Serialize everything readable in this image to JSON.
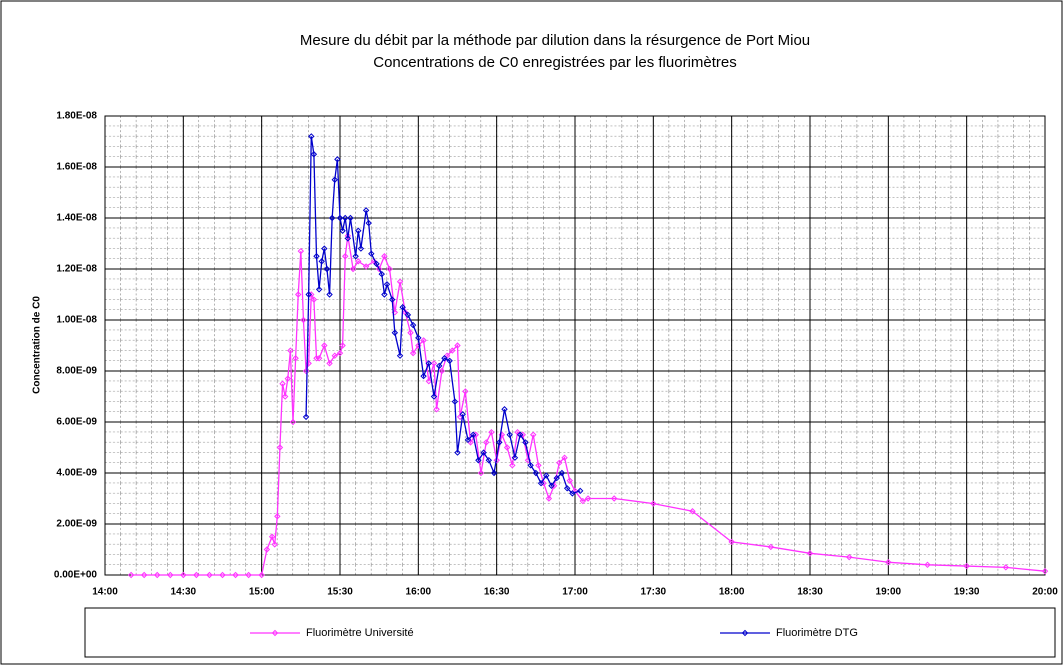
{
  "chart_data": {
    "type": "line",
    "title": "Mesure du débit par la méthode par dilution dans la résurgence de Port Miou",
    "subtitle": "Concentrations de C0 enregistrées par les fluorimètres",
    "y_label": "Concentration de C0",
    "xlim": [
      "14:00",
      "20:00"
    ],
    "xticks": [
      "14:00",
      "14:30",
      "15:00",
      "15:30",
      "16:00",
      "16:30",
      "17:00",
      "17:30",
      "18:00",
      "18:30",
      "19:00",
      "19:30",
      "20:00"
    ],
    "ylim": [
      0,
      1.8e-08
    ],
    "yticks": [
      {
        "value": 0,
        "label": "0.00E+00"
      },
      {
        "value": 2e-09,
        "label": "2.00E-09"
      },
      {
        "value": 4e-09,
        "label": "4.00E-09"
      },
      {
        "value": 6e-09,
        "label": "6.00E-09"
      },
      {
        "value": 8e-09,
        "label": "8.00E-09"
      },
      {
        "value": 1e-08,
        "label": "1.00E-08"
      },
      {
        "value": 1.2e-08,
        "label": "1.20E-08"
      },
      {
        "value": 1.4e-08,
        "label": "1.40E-08"
      },
      {
        "value": 1.6e-08,
        "label": "1.60E-08"
      },
      {
        "value": 1.8e-08,
        "label": "1.80E-08"
      }
    ],
    "grid": true,
    "legend": "bottom",
    "series": [
      {
        "name": "Fluorimètre Université",
        "color": "#ff33ff",
        "x": [
          "14:10",
          "14:15",
          "14:20",
          "14:25",
          "14:30",
          "14:35",
          "14:40",
          "14:45",
          "14:50",
          "14:55",
          "15:00",
          "15:02",
          "15:04",
          "15:05",
          "15:06",
          "15:07",
          "15:08",
          "15:09",
          "15:10",
          "15:11",
          "15:12",
          "15:13",
          "15:14",
          "15:15",
          "15:16",
          "15:17",
          "15:18",
          "15:19",
          "15:20",
          "15:21",
          "15:22",
          "15:24",
          "15:26",
          "15:28",
          "15:30",
          "15:31",
          "15:32",
          "15:33",
          "15:35",
          "15:37",
          "15:40",
          "15:43",
          "15:45",
          "15:47",
          "15:49",
          "15:51",
          "15:53",
          "15:55",
          "15:57",
          "15:58",
          "16:00",
          "16:02",
          "16:04",
          "16:06",
          "16:07",
          "16:09",
          "16:11",
          "16:13",
          "16:15",
          "16:16",
          "16:18",
          "16:20",
          "16:22",
          "16:24",
          "16:26",
          "16:28",
          "16:30",
          "16:32",
          "16:34",
          "16:36",
          "16:38",
          "16:40",
          "16:42",
          "16:44",
          "16:46",
          "16:48",
          "16:50",
          "16:52",
          "16:54",
          "16:56",
          "16:58",
          "17:00",
          "17:03",
          "17:05",
          "17:15",
          "17:30",
          "17:45",
          "18:00",
          "18:15",
          "18:30",
          "18:45",
          "19:00",
          "19:15",
          "19:30",
          "19:45",
          "20:00"
        ],
        "values": [
          0,
          0,
          0,
          0,
          0,
          0,
          0,
          0,
          0,
          0,
          0,
          1e-09,
          1.5e-09,
          1.2e-09,
          2.3e-09,
          5e-09,
          7.5e-09,
          7e-09,
          7.7e-09,
          8.8e-09,
          6e-09,
          8.5e-09,
          1.1e-08,
          1.27e-08,
          1e-08,
          8e-09,
          8.3e-09,
          1.1e-08,
          1.08e-08,
          8.5e-09,
          8.5e-09,
          9e-09,
          8.3e-09,
          8.6e-09,
          8.7e-09,
          9e-09,
          1.25e-08,
          1.33e-08,
          1.2e-08,
          1.23e-08,
          1.21e-08,
          1.23e-08,
          1.2e-08,
          1.25e-08,
          1.2e-08,
          1.03e-08,
          1.15e-08,
          1.03e-08,
          9.5e-09,
          8.7e-09,
          9e-09,
          9.2e-09,
          7.6e-09,
          8.3e-09,
          6.5e-09,
          8e-09,
          8.6e-09,
          8.8e-09,
          9e-09,
          6.2e-09,
          7.2e-09,
          5.2e-09,
          5.5e-09,
          4e-09,
          5.2e-09,
          5.6e-09,
          4.5e-09,
          5.5e-09,
          5e-09,
          4.3e-09,
          5.6e-09,
          5.5e-09,
          4.5e-09,
          5.5e-09,
          4.3e-09,
          3.6e-09,
          3e-09,
          3.5e-09,
          4.4e-09,
          4.6e-09,
          3.7e-09,
          3.3e-09,
          2.9e-09,
          3e-09,
          3e-09,
          2.8e-09,
          2.5e-09,
          1.3e-09,
          1.1e-09,
          8.5e-10,
          7e-10,
          5e-10,
          4e-10,
          3.5e-10,
          3e-10,
          1.5e-10
        ]
      },
      {
        "name": "Fluorimètre DTG",
        "color": "#0000cc",
        "x": [
          "15:17",
          "15:18",
          "15:19",
          "15:20",
          "15:21",
          "15:22",
          "15:23",
          "15:24",
          "15:25",
          "15:26",
          "15:27",
          "15:28",
          "15:29",
          "15:30",
          "15:31",
          "15:32",
          "15:33",
          "15:34",
          "15:36",
          "15:37",
          "15:38",
          "15:40",
          "15:41",
          "15:42",
          "15:44",
          "15:46",
          "15:47",
          "15:48",
          "15:50",
          "15:51",
          "15:53",
          "15:54",
          "15:56",
          "15:58",
          "16:00",
          "16:02",
          "16:04",
          "16:06",
          "16:08",
          "16:10",
          "16:12",
          "16:14",
          "16:15",
          "16:17",
          "16:19",
          "16:21",
          "16:23",
          "16:25",
          "16:27",
          "16:29",
          "16:31",
          "16:33",
          "16:35",
          "16:37",
          "16:39",
          "16:41",
          "16:43",
          "16:45",
          "16:47",
          "16:49",
          "16:51",
          "16:53",
          "16:55",
          "16:57",
          "16:59",
          "17:02"
        ],
        "values": [
          6.2e-09,
          1.1e-08,
          1.72e-08,
          1.65e-08,
          1.25e-08,
          1.12e-08,
          1.23e-08,
          1.28e-08,
          1.2e-08,
          1.1e-08,
          1.4e-08,
          1.55e-08,
          1.63e-08,
          1.4e-08,
          1.35e-08,
          1.4e-08,
          1.32e-08,
          1.4e-08,
          1.25e-08,
          1.35e-08,
          1.28e-08,
          1.43e-08,
          1.38e-08,
          1.26e-08,
          1.22e-08,
          1.18e-08,
          1.1e-08,
          1.14e-08,
          1.08e-08,
          9.5e-09,
          8.6e-09,
          1.05e-08,
          1.02e-08,
          9.8e-09,
          9.3e-09,
          7.8e-09,
          8.3e-09,
          7e-09,
          8.2e-09,
          8.5e-09,
          8.4e-09,
          6.8e-09,
          4.8e-09,
          6.3e-09,
          5.3e-09,
          5.5e-09,
          4.5e-09,
          4.8e-09,
          4.5e-09,
          4e-09,
          5.2e-09,
          6.5e-09,
          5.5e-09,
          4.6e-09,
          5.5e-09,
          5.2e-09,
          4.3e-09,
          4e-09,
          3.6e-09,
          3.9e-09,
          3.5e-09,
          3.8e-09,
          4e-09,
          3.4e-09,
          3.2e-09,
          3.3e-09
        ]
      }
    ]
  }
}
